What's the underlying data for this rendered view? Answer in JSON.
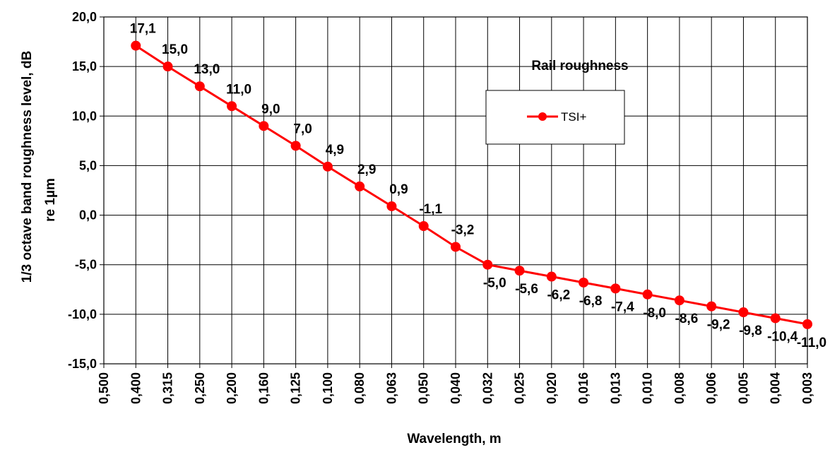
{
  "chart_data": {
    "type": "line",
    "title": "Rail roughness",
    "xlabel": "Wavelength, m",
    "ylabel": "1/3 octave band roughness level, dB re 1µm",
    "ylabel_lines": [
      "1/3 octave band roughness level, dB",
      "re 1µm"
    ],
    "x_tick_labels": [
      "0,500",
      "0,400",
      "0,315",
      "0,250",
      "0,200",
      "0,160",
      "0,125",
      "0,100",
      "0,080",
      "0,063",
      "0,050",
      "0,040",
      "0,032",
      "0,025",
      "0,020",
      "0,016",
      "0,013",
      "0,010",
      "0,008",
      "0,006",
      "0,005",
      "0,004",
      "0,003"
    ],
    "ylim": [
      -15,
      20
    ],
    "y_step": 5,
    "y_tick_labels": [
      "20,0",
      "15,0",
      "10,0",
      "5,0",
      "0,0",
      "-5,0",
      "-10,0",
      "-15,0"
    ],
    "grid": true,
    "legend_position": "top-right",
    "series": [
      {
        "name": "TSI+",
        "color": "#ff0000",
        "x": [
          "0,400",
          "0,315",
          "0,250",
          "0,200",
          "0,160",
          "0,125",
          "0,100",
          "0,080",
          "0,063",
          "0,050",
          "0,040",
          "0,032",
          "0,025",
          "0,020",
          "0,016",
          "0,013",
          "0,010",
          "0,008",
          "0,006",
          "0,005",
          "0,004",
          "0,003"
        ],
        "values": [
          17.1,
          15.0,
          13.0,
          11.0,
          9.0,
          7.0,
          4.9,
          2.9,
          0.9,
          -1.1,
          -3.2,
          -5.0,
          -5.6,
          -6.2,
          -6.8,
          -7.4,
          -8.0,
          -8.6,
          -9.2,
          -9.8,
          -10.4,
          -11.0
        ],
        "value_labels": [
          "17,1",
          "15,0",
          "13,0",
          "11,0",
          "9,0",
          "7,0",
          "4,9",
          "2,9",
          "0,9",
          "-1,1",
          "-3,2",
          "-5,0",
          "-5,6",
          "-6,2",
          "-6,8",
          "-7,4",
          "-8,0",
          "-8,6",
          "-9,2",
          "-9,8",
          "-10,4",
          "-11,0"
        ]
      }
    ]
  }
}
